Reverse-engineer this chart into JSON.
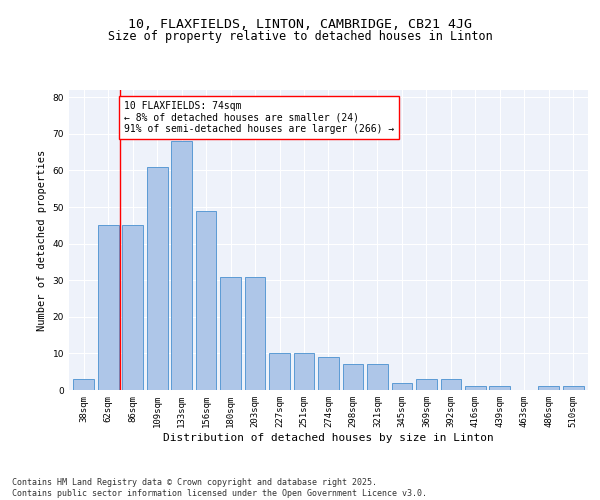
{
  "title1": "10, FLAXFIELDS, LINTON, CAMBRIDGE, CB21 4JG",
  "title2": "Size of property relative to detached houses in Linton",
  "xlabel": "Distribution of detached houses by size in Linton",
  "ylabel": "Number of detached properties",
  "categories": [
    "38sqm",
    "62sqm",
    "86sqm",
    "109sqm",
    "133sqm",
    "156sqm",
    "180sqm",
    "203sqm",
    "227sqm",
    "251sqm",
    "274sqm",
    "298sqm",
    "321sqm",
    "345sqm",
    "369sqm",
    "392sqm",
    "416sqm",
    "439sqm",
    "463sqm",
    "486sqm",
    "510sqm"
  ],
  "values": [
    3,
    45,
    45,
    61,
    68,
    49,
    31,
    31,
    10,
    10,
    9,
    7,
    7,
    2,
    3,
    3,
    1,
    1,
    0,
    1,
    1
  ],
  "bar_color": "#aec6e8",
  "bar_edge_color": "#5b9bd5",
  "vline_x": 1.5,
  "vline_color": "red",
  "annotation_text": "10 FLAXFIELDS: 74sqm\n← 8% of detached houses are smaller (24)\n91% of semi-detached houses are larger (266) →",
  "annotation_box_color": "white",
  "annotation_box_edge": "red",
  "ylim": [
    0,
    82
  ],
  "yticks": [
    0,
    10,
    20,
    30,
    40,
    50,
    60,
    70,
    80
  ],
  "background_color": "#eef2fa",
  "grid_color": "white",
  "footer": "Contains HM Land Registry data © Crown copyright and database right 2025.\nContains public sector information licensed under the Open Government Licence v3.0.",
  "title1_fontsize": 9.5,
  "title2_fontsize": 8.5,
  "xlabel_fontsize": 8,
  "ylabel_fontsize": 7.5,
  "tick_fontsize": 6.5,
  "annotation_fontsize": 7,
  "footer_fontsize": 6
}
